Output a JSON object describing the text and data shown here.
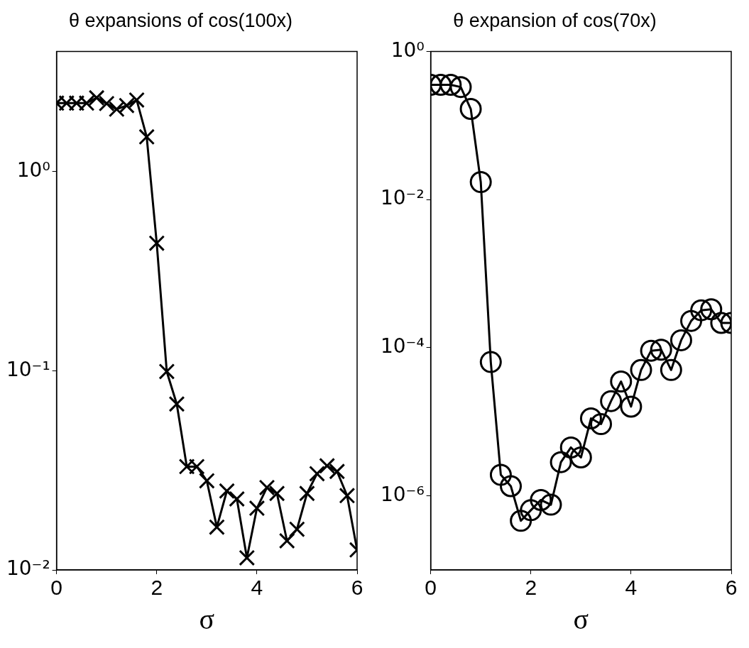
{
  "chart_data": [
    {
      "type": "line",
      "title": "θ expansions of cos(100x)",
      "xlabel": "σ",
      "log": "y",
      "grid": false,
      "legend": false,
      "marker": "cross",
      "line_style": "solid",
      "xlim": [
        0,
        6
      ],
      "xticks": [
        0,
        2,
        4,
        6
      ],
      "ylim": [
        0.01,
        4
      ],
      "yticks": [
        {
          "value": 0.01,
          "label": "10⁻²"
        },
        {
          "value": 0.1,
          "label": "10⁻¹"
        },
        {
          "value": 1,
          "label": "10⁰"
        }
      ],
      "x": [
        0,
        0.2,
        0.4,
        0.6,
        0.8,
        1.0,
        1.2,
        1.4,
        1.6,
        1.8,
        2.0,
        2.2,
        2.4,
        2.6,
        2.8,
        3.0,
        3.2,
        3.4,
        3.6,
        3.8,
        4.0,
        4.2,
        4.4,
        4.6,
        4.8,
        5.0,
        5.2,
        5.4,
        5.6,
        5.8,
        6.0
      ],
      "series": [
        {
          "color": "#000000",
          "values": [
            2.2,
            2.2,
            2.2,
            2.2,
            2.34,
            2.19,
            2.05,
            2.14,
            2.28,
            1.49,
            0.436,
            0.099,
            0.068,
            0.033,
            0.033,
            0.028,
            0.0164,
            0.0249,
            0.0227,
            0.0115,
            0.0204,
            0.0259,
            0.0242,
            0.014,
            0.016,
            0.0242,
            0.0304,
            0.0333,
            0.0312,
            0.0236,
            0.0126
          ]
        }
      ]
    },
    {
      "type": "line",
      "title": "θ expansion of cos(70x)",
      "xlabel": "σ",
      "log": "y",
      "grid": false,
      "legend": false,
      "marker": "circle",
      "line_style": "solid",
      "xlim": [
        0,
        6
      ],
      "xticks": [
        0,
        2,
        4,
        6
      ],
      "ylim": [
        1e-07,
        1
      ],
      "yticks": [
        {
          "value": 1e-06,
          "label": "10⁻⁶"
        },
        {
          "value": 0.0001,
          "label": "10⁻⁴"
        },
        {
          "value": 0.01,
          "label": "10⁻²"
        },
        {
          "value": 1,
          "label": "10⁰"
        }
      ],
      "x": [
        0,
        0.2,
        0.4,
        0.6,
        0.8,
        1.0,
        1.2,
        1.4,
        1.6,
        1.8,
        2.0,
        2.2,
        2.4,
        2.6,
        2.8,
        3.0,
        3.2,
        3.4,
        3.6,
        3.8,
        4.0,
        4.2,
        4.4,
        4.6,
        4.8,
        5.0,
        5.2,
        5.4,
        5.6,
        5.8,
        6.0
      ],
      "series": [
        {
          "color": "#000000",
          "values": [
            0.354,
            0.354,
            0.354,
            0.33,
            0.167,
            0.0172,
            6.4e-05,
            1.92e-06,
            1.35e-06,
            4.6e-07,
            6.4e-07,
            8.8e-07,
            7.6e-07,
            2.85e-06,
            4.5e-06,
            3.3e-06,
            1.11e-05,
            9.3e-06,
            1.9e-05,
            3.5e-05,
            1.6e-05,
            5e-05,
            9.1e-05,
            9.4e-05,
            5e-05,
            0.000126,
            0.00023,
            0.00032,
            0.00033,
            0.000216,
            0.000216
          ]
        }
      ]
    }
  ]
}
